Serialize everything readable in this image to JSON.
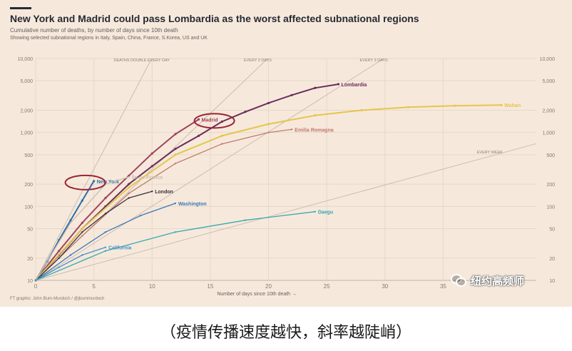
{
  "header": {
    "title": "New York and Madrid could pass Lombardia as the worst affected subnational regions",
    "subtitle": "Cumulative number of deaths, by number of days since 10th death",
    "subtitle2": "Showing selected subnational regions in Italy, Spain, China, France, S.Korea, US and UK"
  },
  "source": "FT graphic: John Burn-Murdoch / @jburnmurdoch",
  "caption": "（疫情传播速度越快，斜率越陡峭）",
  "watermark": {
    "icon": "wechat-icon",
    "text": "纽约高频师"
  },
  "colors": {
    "background": "#f6e9dc",
    "grid": "#e6d8c9",
    "lombardia": "#6b2d5c",
    "madrid": "#a0435e",
    "new_york": "#2e6fa8",
    "wuhan": "#e5c64a",
    "london": "#3a2f3a",
    "washington": "#3c78b5",
    "daegu": "#38a8b0",
    "california": "#4b8fc8",
    "emilia": "#c07a6a",
    "highlight_ring": "#9b2335",
    "reference": "#c9bdb1"
  },
  "chart_data": {
    "type": "line",
    "x_axis": {
      "label": "Number of days since 10th death",
      "range": [
        0,
        43
      ],
      "ticks": [
        0,
        5,
        10,
        15,
        20,
        25,
        30,
        35
      ]
    },
    "y_axis": {
      "scale": "log",
      "range": [
        10,
        10000
      ],
      "ticks": [
        10,
        20,
        50,
        100,
        200,
        500,
        1000,
        2000,
        5000,
        10000
      ],
      "tick_labels": [
        "10",
        "20",
        "50",
        "100",
        "200",
        "500",
        "1,000",
        "2,000",
        "5,000",
        "10,000"
      ]
    },
    "grid": true,
    "reference_lines": [
      {
        "label": "DEATHS DOUBLE EVERY DAY",
        "doubling_days": 1
      },
      {
        "label": "EVERY 2 DAYS",
        "doubling_days": 2
      },
      {
        "label": "EVERY 3 DAYS",
        "doubling_days": 3
      },
      {
        "label": "EVERY WEEK",
        "doubling_days": 7
      }
    ],
    "series": [
      {
        "name": "Lombardia",
        "color_key": "lombardia",
        "x": [
          0,
          2,
          4,
          6,
          8,
          10,
          12,
          14,
          16,
          18,
          20,
          22,
          24,
          26
        ],
        "y": [
          10,
          22,
          50,
          100,
          200,
          350,
          600,
          900,
          1400,
          1900,
          2500,
          3200,
          4000,
          4500
        ]
      },
      {
        "name": "Madrid",
        "color_key": "madrid",
        "x": [
          0,
          2,
          4,
          6,
          8,
          10,
          12,
          14
        ],
        "y": [
          10,
          25,
          60,
          130,
          260,
          520,
          950,
          1500
        ]
      },
      {
        "name": "New York",
        "color_key": "new_york",
        "x": [
          0,
          1,
          2,
          3,
          4,
          5
        ],
        "y": [
          10,
          18,
          35,
          65,
          120,
          220
        ]
      },
      {
        "name": "Wuhan",
        "color_key": "wuhan",
        "x": [
          0,
          4,
          8,
          12,
          16,
          20,
          24,
          28,
          32,
          36,
          40
        ],
        "y": [
          10,
          50,
          180,
          500,
          900,
          1300,
          1700,
          2000,
          2200,
          2300,
          2350
        ]
      },
      {
        "name": "Emilia Romagna",
        "color_key": "emilia",
        "x": [
          0,
          4,
          8,
          12,
          16,
          20,
          22
        ],
        "y": [
          10,
          40,
          150,
          380,
          700,
          1000,
          1100
        ]
      },
      {
        "name": "London",
        "color_key": "london",
        "x": [
          0,
          2,
          4,
          6,
          8,
          10
        ],
        "y": [
          10,
          20,
          45,
          80,
          130,
          160
        ]
      },
      {
        "name": "Washington",
        "color_key": "washington",
        "x": [
          0,
          3,
          6,
          9,
          12
        ],
        "y": [
          10,
          22,
          45,
          75,
          110
        ]
      },
      {
        "name": "Île-de-France",
        "color_key": "reference",
        "x": [
          0,
          3,
          6,
          8
        ],
        "y": [
          10,
          60,
          200,
          250
        ]
      },
      {
        "name": "Daegu",
        "color_key": "daegu",
        "x": [
          0,
          6,
          12,
          18,
          24
        ],
        "y": [
          10,
          25,
          45,
          65,
          85
        ]
      },
      {
        "name": "California",
        "color_key": "california",
        "x": [
          0,
          2,
          4,
          6
        ],
        "y": [
          10,
          15,
          22,
          28
        ]
      }
    ],
    "highlights": [
      "New York",
      "Madrid"
    ]
  }
}
